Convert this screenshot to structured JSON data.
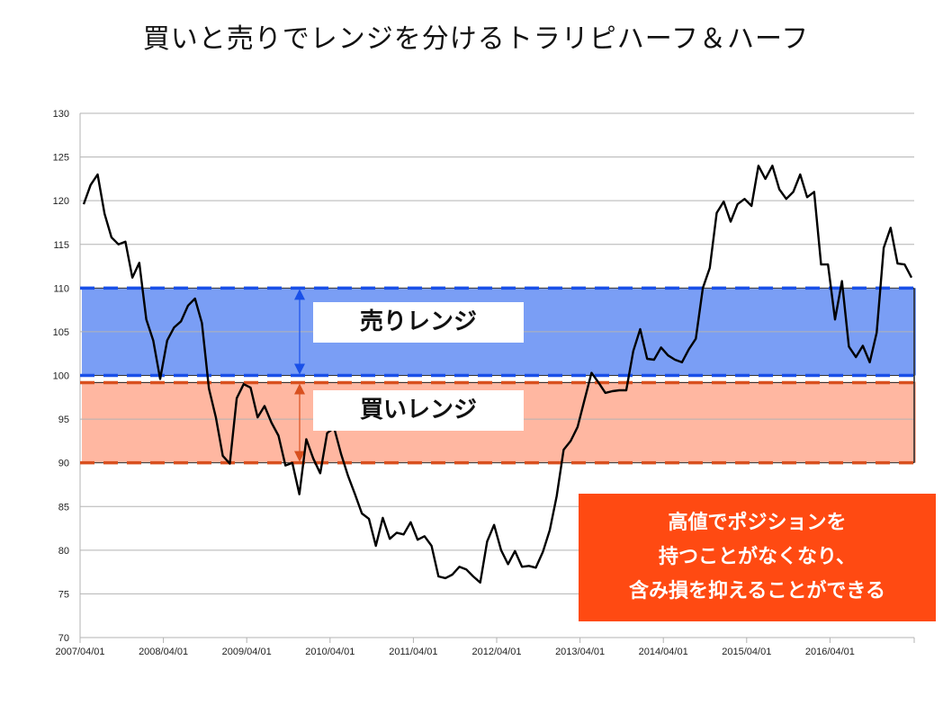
{
  "title": "買いと売りでレンジを分けるトラリピハーフ＆ハーフ",
  "labels": {
    "sell_range": "売りレンジ",
    "buy_range": "買いレンジ"
  },
  "callout": {
    "lines": [
      "高値でポジションを",
      "持つことがなくなり、",
      "含み損を抑えることができる"
    ]
  },
  "colors": {
    "sell_band": "#7a9ef5",
    "buy_band": "#ffb7a1",
    "sell_line": "#1a50e8",
    "buy_line": "#d8501f",
    "series": "#000000",
    "callout_bg": "#ff4a12"
  },
  "chart_data": {
    "type": "line",
    "title": "",
    "xlabel": "",
    "ylabel": "",
    "ylim": [
      70,
      130
    ],
    "y_ticks": [
      70,
      75,
      80,
      85,
      90,
      95,
      100,
      105,
      110,
      115,
      120,
      125,
      130
    ],
    "x_ticks": [
      "2007/04/01",
      "2008/04/01",
      "2009/04/01",
      "2010/04/01",
      "2011/04/01",
      "2012/04/01",
      "2013/04/01",
      "2014/04/01",
      "2015/04/01",
      "2016/04/01"
    ],
    "grid": true,
    "ranges": {
      "sell": [
        100,
        110
      ],
      "buy": [
        90,
        100
      ]
    },
    "series": [
      {
        "values": [
          119.6,
          121.8,
          123.0,
          118.5,
          115.8,
          115.0,
          115.3,
          111.2,
          112.9,
          106.4,
          104.0,
          99.6,
          104.0,
          105.5,
          106.2,
          108.0,
          108.8,
          106.0,
          98.5,
          95.2,
          90.8,
          89.9,
          97.4,
          99.0,
          98.6,
          95.2,
          96.5,
          94.6,
          93.1,
          89.7,
          90.0,
          86.4,
          92.7,
          90.5,
          88.8,
          93.4,
          94.0,
          91.0,
          88.5,
          86.4,
          84.2,
          83.6,
          80.5,
          83.7,
          81.3,
          82.0,
          81.8,
          83.2,
          81.2,
          81.6,
          80.5,
          77.0,
          76.8,
          77.2,
          78.1,
          77.8,
          77.0,
          76.3,
          81.0,
          82.9,
          80.0,
          78.4,
          79.9,
          78.1,
          78.2,
          78.0,
          79.8,
          82.3,
          86.2,
          91.5,
          92.5,
          94.1,
          97.2,
          100.3,
          99.2,
          98.0,
          98.2,
          98.3,
          98.3,
          102.8,
          105.3,
          101.9,
          101.8,
          103.2,
          102.3,
          101.8,
          101.5,
          103.0,
          104.2,
          110.0,
          112.3,
          118.6,
          119.9,
          117.6,
          119.6,
          120.2,
          119.4,
          124.0,
          122.5,
          124.0,
          121.3,
          120.2,
          121.0,
          123.0,
          120.4,
          121.0,
          112.7,
          112.7,
          106.4,
          110.8,
          103.3,
          102.1,
          103.4,
          101.5,
          104.9,
          114.6,
          116.9,
          112.8,
          112.7,
          111.2
        ]
      }
    ]
  }
}
